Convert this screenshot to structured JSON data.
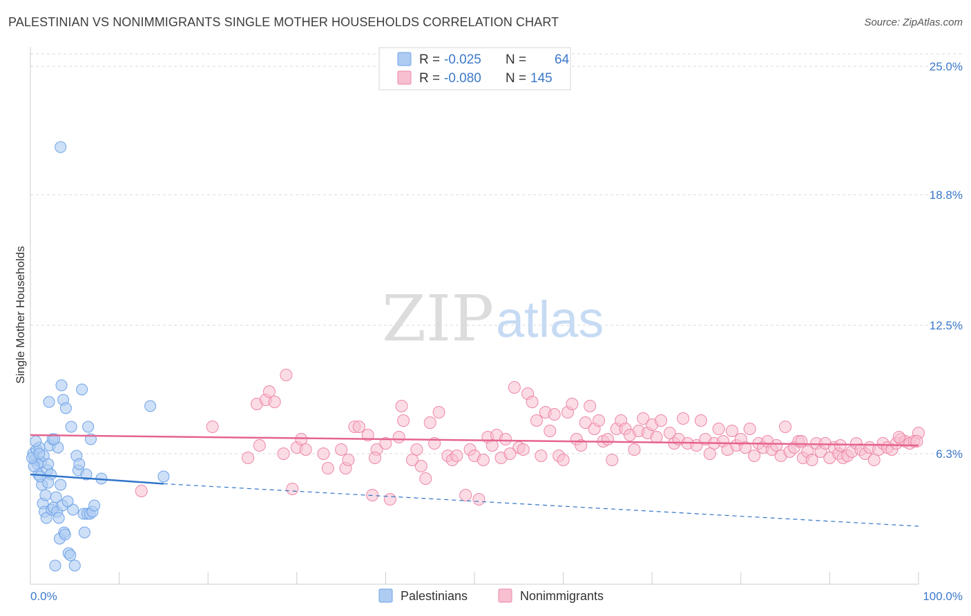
{
  "title": "PALESTINIAN VS NONIMMIGRANTS SINGLE MOTHER HOUSEHOLDS CORRELATION CHART",
  "source": "Source: ZipAtlas.com",
  "watermark": {
    "zip": "ZIP",
    "atlas": "atlas"
  },
  "colors": {
    "blue": "#6fa3e8",
    "blue_fill": "#aecbf2",
    "blue_line": "#2f74c9",
    "pink": "#ee86a6",
    "pink_fill": "#f7bfd0",
    "pink_line": "#e5638f",
    "axis_text": "#3b78c9",
    "grid": "#d9d9d9"
  },
  "legend": {
    "rows": [
      {
        "r_label": "R =",
        "r_value": "-0.025",
        "n_label": "N =",
        "n_value": "64"
      },
      {
        "r_label": "R =",
        "r_value": "-0.080",
        "n_label": "N =",
        "n_value": "145"
      }
    ]
  },
  "bottom_legend": [
    "Palestinians",
    "Nonimmigrants"
  ],
  "chart_data": {
    "type": "scatter",
    "title": "PALESTINIAN VS NONIMMIGRANTS SINGLE MOTHER HOUSEHOLDS CORRELATION CHART",
    "xlabel": "",
    "ylabel": "Single Mother Households",
    "xlim": [
      0,
      100
    ],
    "ylim": [
      0,
      25.6
    ],
    "x_tick_labels": [
      "0.0%",
      "100.0%"
    ],
    "y_ticks": [
      6.3,
      12.5,
      18.8,
      25.0
    ],
    "y_tick_labels": [
      "6.3%",
      "12.5%",
      "18.8%",
      "25.0%"
    ],
    "grid": true,
    "series": [
      {
        "name": "Palestinians",
        "trend": {
          "x0": 0,
          "y0": 5.3,
          "x1": 15,
          "y1": 4.85,
          "dashed_to_x": 100,
          "dashed_to_y": 2.8
        },
        "points": [
          [
            3.4,
            21.1
          ],
          [
            0.3,
            6.3
          ],
          [
            0.5,
            6.0
          ],
          [
            0.7,
            6.5
          ],
          [
            0.8,
            5.8
          ],
          [
            0.9,
            5.3
          ],
          [
            1.0,
            6.6
          ],
          [
            1.2,
            5.9
          ],
          [
            1.3,
            4.8
          ],
          [
            1.4,
            3.9
          ],
          [
            1.5,
            6.2
          ],
          [
            1.6,
            3.5
          ],
          [
            1.7,
            4.3
          ],
          [
            1.8,
            3.2
          ],
          [
            1.9,
            5.5
          ],
          [
            2.0,
            5.8
          ],
          [
            2.1,
            8.8
          ],
          [
            2.2,
            6.7
          ],
          [
            2.3,
            5.3
          ],
          [
            2.4,
            3.6
          ],
          [
            2.5,
            7.0
          ],
          [
            2.6,
            3.7
          ],
          [
            2.8,
            0.9
          ],
          [
            2.9,
            4.2
          ],
          [
            3.0,
            3.5
          ],
          [
            3.1,
            6.6
          ],
          [
            3.2,
            3.2
          ],
          [
            3.3,
            2.2
          ],
          [
            3.4,
            4.8
          ],
          [
            3.5,
            9.6
          ],
          [
            3.6,
            3.8
          ],
          [
            3.7,
            8.9
          ],
          [
            3.8,
            2.5
          ],
          [
            3.9,
            2.4
          ],
          [
            4.0,
            8.5
          ],
          [
            4.3,
            1.5
          ],
          [
            4.5,
            1.4
          ],
          [
            4.6,
            7.6
          ],
          [
            4.8,
            3.6
          ],
          [
            5.0,
            0.9
          ],
          [
            5.2,
            6.2
          ],
          [
            5.4,
            5.5
          ],
          [
            5.5,
            5.8
          ],
          [
            5.8,
            9.4
          ],
          [
            6.0,
            3.4
          ],
          [
            6.1,
            2.5
          ],
          [
            6.3,
            5.3
          ],
          [
            6.4,
            3.4
          ],
          [
            6.5,
            7.6
          ],
          [
            6.7,
            3.4
          ],
          [
            7.0,
            3.5
          ],
          [
            7.2,
            3.8
          ],
          [
            8.0,
            5.1
          ],
          [
            13.5,
            8.6
          ],
          [
            15.0,
            5.2
          ],
          [
            0.4,
            5.7
          ],
          [
            0.6,
            6.9
          ],
          [
            1.1,
            5.2
          ],
          [
            2.7,
            7.0
          ],
          [
            0.2,
            6.1
          ],
          [
            1.0,
            6.3
          ],
          [
            4.2,
            4.0
          ],
          [
            6.8,
            7.0
          ],
          [
            2.0,
            4.9
          ]
        ]
      },
      {
        "name": "Nonimmigrants",
        "trend": {
          "x0": 0,
          "y0": 7.2,
          "x1": 100,
          "y1": 6.7
        },
        "points": [
          [
            12.5,
            4.5
          ],
          [
            20.5,
            7.6
          ],
          [
            24.5,
            6.1
          ],
          [
            25.5,
            8.7
          ],
          [
            25.8,
            6.7
          ],
          [
            26.5,
            8.9
          ],
          [
            26.9,
            9.3
          ],
          [
            27.5,
            8.8
          ],
          [
            28.5,
            6.3
          ],
          [
            28.8,
            10.1
          ],
          [
            29.5,
            4.6
          ],
          [
            30.0,
            6.6
          ],
          [
            30.5,
            7.0
          ],
          [
            31.0,
            6.5
          ],
          [
            33.5,
            5.6
          ],
          [
            35.0,
            6.5
          ],
          [
            35.5,
            5.6
          ],
          [
            35.8,
            6.0
          ],
          [
            36.5,
            7.6
          ],
          [
            37.0,
            7.6
          ],
          [
            38.0,
            7.2
          ],
          [
            38.5,
            4.3
          ],
          [
            39.0,
            6.5
          ],
          [
            40.0,
            6.8
          ],
          [
            40.5,
            4.1
          ],
          [
            41.5,
            7.1
          ],
          [
            41.8,
            8.6
          ],
          [
            42.0,
            7.9
          ],
          [
            43.5,
            6.5
          ],
          [
            44.0,
            5.7
          ],
          [
            44.5,
            5.1
          ],
          [
            45.0,
            7.8
          ],
          [
            45.5,
            6.8
          ],
          [
            46.0,
            8.3
          ],
          [
            47.0,
            6.2
          ],
          [
            47.5,
            6.0
          ],
          [
            48.0,
            6.2
          ],
          [
            49.0,
            4.3
          ],
          [
            49.5,
            6.5
          ],
          [
            50.0,
            6.2
          ],
          [
            50.5,
            4.1
          ],
          [
            51.0,
            6.0
          ],
          [
            51.5,
            7.1
          ],
          [
            52.0,
            6.7
          ],
          [
            52.5,
            7.2
          ],
          [
            53.0,
            6.1
          ],
          [
            53.5,
            7.0
          ],
          [
            54.5,
            9.5
          ],
          [
            55.0,
            6.6
          ],
          [
            55.5,
            6.5
          ],
          [
            56.0,
            9.2
          ],
          [
            56.5,
            8.8
          ],
          [
            57.0,
            7.9
          ],
          [
            57.5,
            6.2
          ],
          [
            58.0,
            8.3
          ],
          [
            58.5,
            7.4
          ],
          [
            59.0,
            8.2
          ],
          [
            59.5,
            6.2
          ],
          [
            60.5,
            8.3
          ],
          [
            61.0,
            8.7
          ],
          [
            61.5,
            7.0
          ],
          [
            62.0,
            6.7
          ],
          [
            62.5,
            7.8
          ],
          [
            63.0,
            8.6
          ],
          [
            63.5,
            7.5
          ],
          [
            64.0,
            7.9
          ],
          [
            64.5,
            6.9
          ],
          [
            65.0,
            7.0
          ],
          [
            65.5,
            6.0
          ],
          [
            66.0,
            7.5
          ],
          [
            66.5,
            7.9
          ],
          [
            67.0,
            7.5
          ],
          [
            67.5,
            7.2
          ],
          [
            68.0,
            6.5
          ],
          [
            68.5,
            7.4
          ],
          [
            69.0,
            8.0
          ],
          [
            69.5,
            7.3
          ],
          [
            70.0,
            7.7
          ],
          [
            70.5,
            7.1
          ],
          [
            71.0,
            7.9
          ],
          [
            72.0,
            7.3
          ],
          [
            72.5,
            6.8
          ],
          [
            73.0,
            7.0
          ],
          [
            73.5,
            8.0
          ],
          [
            74.0,
            6.8
          ],
          [
            75.0,
            6.7
          ],
          [
            75.5,
            7.9
          ],
          [
            76.0,
            7.0
          ],
          [
            77.0,
            6.8
          ],
          [
            77.5,
            7.5
          ],
          [
            78.0,
            6.9
          ],
          [
            78.5,
            6.5
          ],
          [
            79.0,
            7.4
          ],
          [
            79.5,
            6.7
          ],
          [
            80.0,
            7.0
          ],
          [
            80.5,
            6.6
          ],
          [
            81.0,
            7.5
          ],
          [
            81.5,
            6.2
          ],
          [
            82.0,
            6.8
          ],
          [
            82.5,
            6.6
          ],
          [
            83.0,
            6.9
          ],
          [
            83.5,
            6.5
          ],
          [
            84.0,
            6.7
          ],
          [
            84.5,
            6.2
          ],
          [
            85.0,
            7.6
          ],
          [
            85.5,
            6.4
          ],
          [
            86.0,
            6.6
          ],
          [
            86.5,
            6.9
          ],
          [
            87.0,
            6.1
          ],
          [
            87.5,
            6.4
          ],
          [
            88.0,
            6.0
          ],
          [
            88.5,
            6.8
          ],
          [
            89.0,
            6.4
          ],
          [
            89.5,
            6.8
          ],
          [
            90.0,
            6.1
          ],
          [
            90.5,
            6.6
          ],
          [
            91.0,
            6.3
          ],
          [
            91.5,
            6.1
          ],
          [
            92.0,
            6.2
          ],
          [
            92.5,
            6.4
          ],
          [
            93.0,
            6.8
          ],
          [
            93.5,
            6.5
          ],
          [
            94.0,
            6.3
          ],
          [
            94.5,
            6.6
          ],
          [
            95.0,
            6.0
          ],
          [
            95.5,
            6.5
          ],
          [
            96.0,
            6.8
          ],
          [
            96.5,
            6.6
          ],
          [
            97.0,
            6.5
          ],
          [
            97.5,
            6.8
          ],
          [
            98.0,
            7.0
          ],
          [
            98.5,
            6.9
          ],
          [
            99.0,
            6.8
          ],
          [
            99.5,
            6.9
          ],
          [
            100.0,
            7.3
          ],
          [
            38.8,
            6.1
          ],
          [
            43.0,
            6.0
          ],
          [
            54.0,
            6.3
          ],
          [
            60.0,
            6.0
          ],
          [
            76.5,
            6.3
          ],
          [
            86.8,
            6.9
          ],
          [
            91.2,
            6.7
          ],
          [
            97.8,
            7.1
          ],
          [
            99.8,
            6.9
          ],
          [
            33.0,
            6.3
          ]
        ]
      }
    ]
  }
}
